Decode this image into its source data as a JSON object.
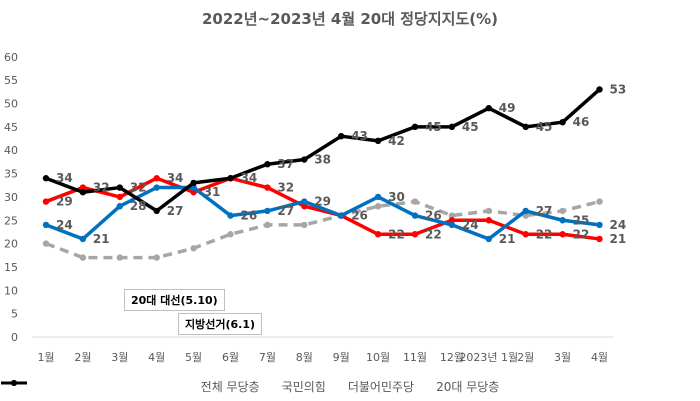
{
  "chart_data": {
    "type": "line",
    "title": "2022년~2023년 4월 20대 정당지지도(%)",
    "categories": [
      "1월",
      "2월",
      "3월",
      "4월",
      "5월",
      "6월",
      "7월",
      "8월",
      "9월",
      "10월",
      "11월",
      "12월",
      "2023년 1월",
      "2월",
      "3월",
      "4월"
    ],
    "ylim": [
      0,
      60
    ],
    "yticks": [
      "0",
      "5",
      "10",
      "15",
      "20",
      "25",
      "30",
      "35",
      "40",
      "45",
      "50",
      "55",
      "60"
    ],
    "grid": false,
    "legend_position": "bottom",
    "series": [
      {
        "name": "전체 무당층",
        "color": "#a6a6a6",
        "dash": true,
        "values": [
          20,
          17,
          17,
          17,
          19,
          22,
          24,
          24,
          26,
          28,
          29,
          26,
          27,
          26,
          27,
          29
        ]
      },
      {
        "name": "국민의힘",
        "color": "#ff0000",
        "dash": false,
        "values": [
          29,
          32,
          30,
          34,
          31,
          34,
          32,
          28,
          26,
          22,
          22,
          25,
          25,
          22,
          22,
          21
        ]
      },
      {
        "name": "더불어민주당",
        "color": "#0070c0",
        "dash": false,
        "values": [
          24,
          21,
          28,
          32,
          32,
          26,
          27,
          29,
          26,
          30,
          26,
          24,
          21,
          27,
          25,
          24
        ]
      },
      {
        "name": "20대 무당층",
        "color": "#000000",
        "dash": false,
        "values": [
          34,
          31,
          32,
          27,
          33,
          34,
          37,
          38,
          43,
          42,
          45,
          45,
          49,
          45,
          46,
          53
        ]
      }
    ],
    "data_labels": [
      {
        "series": 1,
        "index": 0,
        "text": "29"
      },
      {
        "series": 2,
        "index": 0,
        "text": "24"
      },
      {
        "series": 3,
        "index": 0,
        "text": "34"
      },
      {
        "series": 2,
        "index": 1,
        "text": "21"
      },
      {
        "series": 1,
        "index": 1,
        "text": "32"
      },
      {
        "series": 3,
        "index": 2,
        "text": "32"
      },
      {
        "series": 2,
        "index": 2,
        "text": "28"
      },
      {
        "series": 1,
        "index": 3,
        "text": "34"
      },
      {
        "series": 3,
        "index": 3,
        "text": "27"
      },
      {
        "series": 1,
        "index": 4,
        "text": "31"
      },
      {
        "series": 1,
        "index": 5,
        "text": "34"
      },
      {
        "series": 2,
        "index": 5,
        "text": "26"
      },
      {
        "series": 3,
        "index": 6,
        "text": "37"
      },
      {
        "series": 1,
        "index": 6,
        "text": "32"
      },
      {
        "series": 2,
        "index": 6,
        "text": "27"
      },
      {
        "series": 3,
        "index": 7,
        "text": "38"
      },
      {
        "series": 2,
        "index": 7,
        "text": "29"
      },
      {
        "series": 0,
        "index": 8,
        "text": "26"
      },
      {
        "series": 3,
        "index": 8,
        "text": "43"
      },
      {
        "series": 3,
        "index": 9,
        "text": "42"
      },
      {
        "series": 2,
        "index": 9,
        "text": "30"
      },
      {
        "series": 1,
        "index": 9,
        "text": "22"
      },
      {
        "series": 3,
        "index": 10,
        "text": "45"
      },
      {
        "series": 2,
        "index": 10,
        "text": "26"
      },
      {
        "series": 1,
        "index": 10,
        "text": "22"
      },
      {
        "series": 3,
        "index": 11,
        "text": "45"
      },
      {
        "series": 2,
        "index": 11,
        "text": "24"
      },
      {
        "series": 3,
        "index": 12,
        "text": "49"
      },
      {
        "series": 2,
        "index": 12,
        "text": "21"
      },
      {
        "series": 3,
        "index": 13,
        "text": "45"
      },
      {
        "series": 2,
        "index": 13,
        "text": "27"
      },
      {
        "series": 1,
        "index": 13,
        "text": "22"
      },
      {
        "series": 3,
        "index": 14,
        "text": "46"
      },
      {
        "series": 2,
        "index": 14,
        "text": "25"
      },
      {
        "series": 1,
        "index": 14,
        "text": "22"
      },
      {
        "series": 3,
        "index": 15,
        "text": "53"
      },
      {
        "series": 2,
        "index": 15,
        "text": "24"
      },
      {
        "series": 1,
        "index": 15,
        "text": "21"
      }
    ],
    "annotations": [
      {
        "text": "20대 대선(5.10)",
        "near": "4월"
      },
      {
        "text": "지방선거(6.1)",
        "near": "5월~6월"
      }
    ]
  }
}
